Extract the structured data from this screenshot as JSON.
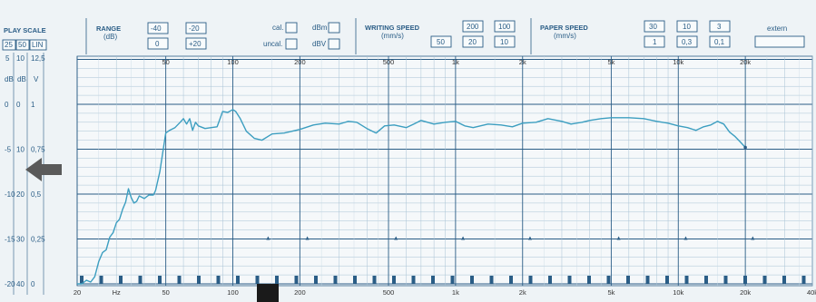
{
  "header": {
    "play_scale": {
      "title": "PLAY SCALE",
      "options": [
        "25",
        "50",
        "LIN"
      ]
    },
    "range": {
      "title": "RANGE",
      "unit": "(dB)",
      "values": [
        "-40",
        "-20",
        "0",
        "+20"
      ]
    },
    "cal": {
      "cal": "cal.",
      "uncal": "uncal.",
      "dbm": "dBm",
      "dbv": "dBV"
    },
    "writing_speed": {
      "title": "WRITING SPEED",
      "unit": "(mm/s)",
      "values": [
        "200",
        "100",
        "50",
        "20",
        "10"
      ]
    },
    "paper_speed": {
      "title": "PAPER SPEED",
      "unit": "(mm/s)",
      "values": [
        "30",
        "10",
        "3",
        "1",
        "0,3",
        "0,1"
      ]
    },
    "extern": "extern"
  },
  "scale_columns": {
    "top": [
      "5",
      "10",
      "12,5"
    ],
    "units": [
      "dB",
      "dB",
      "V"
    ]
  },
  "chart_data": {
    "type": "line",
    "x_scale": "log",
    "xlim": [
      20,
      40000
    ],
    "ylim": [
      -20,
      5
    ],
    "xunit": "Hz",
    "y_labels": [
      {
        "left": "0",
        "mid": "0",
        "right": "1",
        "value": 0
      },
      {
        "left": "-5",
        "mid": "10",
        "right": "0,75",
        "value": -5
      },
      {
        "left": "-10",
        "mid": "20",
        "right": "0,5",
        "value": -10
      },
      {
        "left": "-15",
        "mid": "30",
        "right": "0,25",
        "value": -15
      },
      {
        "left": "-20",
        "mid": "40",
        "right": "0",
        "value": -20
      }
    ],
    "x_tick_labels": [
      {
        "label": "20",
        "value": 20
      },
      {
        "label": "Hz",
        "value": 30
      },
      {
        "label": "50",
        "value": 50
      },
      {
        "label": "100",
        "value": 100
      },
      {
        "label": "200",
        "value": 200
      },
      {
        "label": "500",
        "value": 500
      },
      {
        "label": "1k",
        "value": 1000
      },
      {
        "label": "2k",
        "value": 2000
      },
      {
        "label": "5k",
        "value": 5000
      },
      {
        "label": "10k",
        "value": 10000
      },
      {
        "label": "20k",
        "value": 20000
      },
      {
        "label": "40k",
        "value": 40000
      }
    ],
    "x_top_labels": [
      {
        "label": "50",
        "value": 50
      },
      {
        "label": "100",
        "value": 100
      },
      {
        "label": "200",
        "value": 200
      },
      {
        "label": "500",
        "value": 500
      },
      {
        "label": "1k",
        "value": 1000
      },
      {
        "label": "2k",
        "value": 2000
      },
      {
        "label": "5k",
        "value": 5000
      },
      {
        "label": "10k",
        "value": 10000
      },
      {
        "label": "20k",
        "value": 20000
      }
    ],
    "series": [
      {
        "color": "#3c9ec0",
        "points": [
          [
            20,
            -20
          ],
          [
            21,
            -20
          ],
          [
            22,
            -19.6
          ],
          [
            23,
            -19.8
          ],
          [
            24,
            -19.2
          ],
          [
            25,
            -17.5
          ],
          [
            26,
            -16.5
          ],
          [
            27,
            -16.2
          ],
          [
            28,
            -14.8
          ],
          [
            29,
            -14.3
          ],
          [
            30,
            -13.2
          ],
          [
            31,
            -12.8
          ],
          [
            32,
            -11.7
          ],
          [
            33,
            -10.9
          ],
          [
            34,
            -9.4
          ],
          [
            35,
            -10.4
          ],
          [
            36,
            -11
          ],
          [
            37,
            -10.8
          ],
          [
            38,
            -10.2
          ],
          [
            40,
            -10.5
          ],
          [
            42,
            -10.1
          ],
          [
            44,
            -10.1
          ],
          [
            45,
            -9.6
          ],
          [
            47,
            -7.5
          ],
          [
            50,
            -3.2
          ],
          [
            52,
            -2.9
          ],
          [
            55,
            -2.6
          ],
          [
            58,
            -2
          ],
          [
            60,
            -1.6
          ],
          [
            62,
            -2.2
          ],
          [
            64,
            -1.6
          ],
          [
            66,
            -2.9
          ],
          [
            68,
            -2
          ],
          [
            70,
            -2.4
          ],
          [
            75,
            -2.7
          ],
          [
            80,
            -2.6
          ],
          [
            85,
            -2.5
          ],
          [
            90,
            -0.8
          ],
          [
            95,
            -0.9
          ],
          [
            100,
            -0.6
          ],
          [
            103,
            -0.8
          ],
          [
            108,
            -1.6
          ],
          [
            115,
            -3
          ],
          [
            125,
            -3.8
          ],
          [
            135,
            -4
          ],
          [
            150,
            -3.3
          ],
          [
            170,
            -3.2
          ],
          [
            200,
            -2.8
          ],
          [
            230,
            -2.3
          ],
          [
            260,
            -2.1
          ],
          [
            300,
            -2.2
          ],
          [
            330,
            -1.9
          ],
          [
            360,
            -2
          ],
          [
            400,
            -2.7
          ],
          [
            440,
            -3.2
          ],
          [
            480,
            -2.4
          ],
          [
            530,
            -2.3
          ],
          [
            600,
            -2.6
          ],
          [
            650,
            -2.2
          ],
          [
            700,
            -1.8
          ],
          [
            800,
            -2.2
          ],
          [
            900,
            -2
          ],
          [
            1000,
            -1.9
          ],
          [
            1100,
            -2.4
          ],
          [
            1200,
            -2.6
          ],
          [
            1400,
            -2.2
          ],
          [
            1600,
            -2.3
          ],
          [
            1800,
            -2.5
          ],
          [
            2000,
            -2.1
          ],
          [
            2300,
            -2
          ],
          [
            2600,
            -1.6
          ],
          [
            3000,
            -1.9
          ],
          [
            3300,
            -2.2
          ],
          [
            3700,
            -2
          ],
          [
            4000,
            -1.8
          ],
          [
            4500,
            -1.6
          ],
          [
            5000,
            -1.5
          ],
          [
            6000,
            -1.5
          ],
          [
            7000,
            -1.6
          ],
          [
            8000,
            -1.9
          ],
          [
            9000,
            -2.1
          ],
          [
            10000,
            -2.4
          ],
          [
            11000,
            -2.6
          ],
          [
            12000,
            -2.9
          ],
          [
            13000,
            -2.5
          ],
          [
            14000,
            -2.3
          ],
          [
            15000,
            -1.9
          ],
          [
            16000,
            -2.2
          ],
          [
            17000,
            -3.1
          ],
          [
            18000,
            -3.6
          ],
          [
            19000,
            -4.2
          ],
          [
            20000,
            -4.8
          ]
        ]
      }
    ],
    "grid": true
  }
}
